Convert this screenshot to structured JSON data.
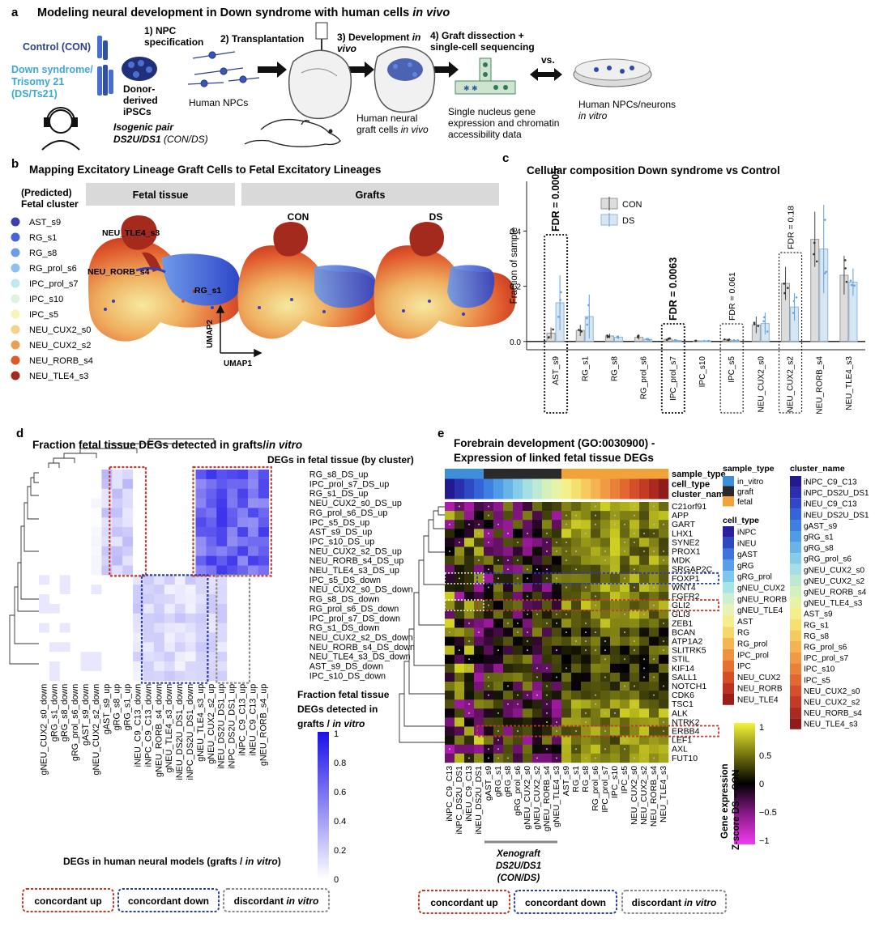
{
  "panel_a": {
    "letter": "a",
    "title_plain": "Modeling neural development in Down syndrome with human cells ",
    "title_italic": "in vivo",
    "control_label": "Control (CON)",
    "ds_label_line1": "Down syndrome/",
    "ds_label_line2": "Trisomy 21",
    "ds_label_line3": "(DS/Ts21)",
    "step1_line1": "1) NPC",
    "step1_line2": "specification",
    "step2": "2) Transplantation",
    "step3_line1": "3) Development in",
    "step3_line2": "vivo",
    "step4_line1": "4) Graft dissection +",
    "step4_line2": "single-cell sequencing",
    "donor_line1": "Donor-",
    "donor_line2": "derived",
    "donor_line3": "iPSCs",
    "human_npcs": "Human NPCs",
    "isogenic_line1": "Isogenic pair",
    "isogenic_line2_bold": "DS2U/DS1",
    "isogenic_line2_rest": " (CON/DS)",
    "graft_line1": "Human neural",
    "graft_line2": "graft cells in vivo",
    "sn_line1": "Single nucleus gene",
    "sn_line2": "expression and chromatin",
    "sn_line3": "accessibility data",
    "vs": "vs.",
    "vitro_line1": "Human NPCs/neurons",
    "vitro_line2": "in vitro"
  },
  "panel_b": {
    "letter": "b",
    "title": "Mapping Excitatory Lineage Graft Cells to Fetal Excitatory Lineages",
    "legend_title_line1": "(Predicted)",
    "legend_title_line2": "Fetal cluster",
    "legend": [
      {
        "label": "AST_s9",
        "color": "#3b3fb0"
      },
      {
        "label": "RG_s1",
        "color": "#4a63d6"
      },
      {
        "label": "RG_s8",
        "color": "#6f9ae8"
      },
      {
        "label": "RG_prol_s6",
        "color": "#8fc0ef"
      },
      {
        "label": "IPC_prol_s7",
        "color": "#bfe8f2"
      },
      {
        "label": "IPC_s10",
        "color": "#dcf4dc"
      },
      {
        "label": "IPC_s5",
        "color": "#f8f4b8"
      },
      {
        "label": "NEU_CUX2_s0",
        "color": "#f4d28a"
      },
      {
        "label": "NEU_CUX2_s2",
        "color": "#ec9e55"
      },
      {
        "label": "NEU_RORB_s4",
        "color": "#dc5a2c"
      },
      {
        "label": "NEU_TLE4_s3",
        "color": "#a52a1e"
      }
    ],
    "header_fetal": "Fetal tissue",
    "header_grafts": "Grafts",
    "sub_con": "CON",
    "sub_ds": "DS",
    "label_tle4": "NEU_TLE4_s3",
    "label_rorb": "NEU_RORB_s4",
    "label_rg": "RG_s1",
    "axis_umap2": "UMAP2",
    "axis_umap1": "UMAP1"
  },
  "panel_c": {
    "letter": "c",
    "chart_data": {
      "type": "bar",
      "title": "Cellular composition Down syndrome vs Control",
      "ylabel": "Fraction of sample",
      "xlabel": "",
      "ylim": [
        -0.03,
        0.58
      ],
      "yticks": [
        "0.0",
        "0.2",
        "0.4"
      ],
      "categories": [
        "AST_s9",
        "RG_s1",
        "RG_s8",
        "RG_prol_s6",
        "IPC_prol_s7",
        "IPC_s10",
        "IPC_s5",
        "NEU_CUX2_s0",
        "NEU_CUX2_s2",
        "NEU_RORB_s4",
        "NEU_TLE4_s3"
      ],
      "series": [
        {
          "name": "CON",
          "color": "#9a9a9a",
          "values": [
            0.03,
            0.04,
            0.02,
            0.015,
            0.008,
            0.002,
            0.006,
            0.06,
            0.21,
            0.37,
            0.24
          ],
          "errors": [
            0.02,
            0.02,
            0.008,
            0.008,
            0.004,
            0.001,
            0.004,
            0.03,
            0.06,
            0.1,
            0.07
          ]
        },
        {
          "name": "DS",
          "color": "#8db8de",
          "values": [
            0.14,
            0.09,
            0.015,
            0.008,
            0.004,
            0.002,
            0.003,
            0.065,
            0.125,
            0.335,
            0.215
          ],
          "errors": [
            0.1,
            0.08,
            0.006,
            0.005,
            0.002,
            0.001,
            0.002,
            0.04,
            0.05,
            0.16,
            0.05
          ]
        }
      ],
      "legend": [
        "CON",
        "DS"
      ],
      "annotations": [
        {
          "category": "AST_s9",
          "text": "FDR = 0.0005",
          "bold": true
        },
        {
          "category": "IPC_prol_s7",
          "text": "FDR = 0.0063",
          "bold": true
        },
        {
          "category": "IPC_s5",
          "text": "FDR = 0.061",
          "bold": false
        },
        {
          "category": "NEU_CUX2_s2",
          "text": "FDR = 0.18",
          "bold": false
        }
      ]
    }
  },
  "panel_d": {
    "letter": "d",
    "title_plain": "Fraction fetal tissue DEGs detected in grafts/",
    "title_italic": "in vitro",
    "row_header": "DEGs in fetal tissue (by cluster)",
    "rows": [
      "RG_s8_DS_up",
      "IPC_prol_s7_DS_up",
      "RG_s1_DS_up",
      "NEU_CUX2_s0_DS_up",
      "RG_prol_s6_DS_up",
      "IPC_s5_DS_up",
      "AST_s9_DS_up",
      "IPC_s10_DS_up",
      "NEU_CUX2_s2_DS_up",
      "NEU_RORB_s4_DS_up",
      "NEU_TLE4_s3_DS_up",
      "IPC_s5_DS_down",
      "NEU_CUX2_s0_DS_down",
      "RG_s8_DS_down",
      "RG_prol_s6_DS_down",
      "IPC_prol_s7_DS_down",
      "RG_s1_DS_down",
      "NEU_CUX2_s2_DS_down",
      "NEU_RORB_s4_DS_down",
      "NEU_TLE4_s3_DS_down",
      "AST_s9_DS_down",
      "IPC_s10_DS_down"
    ],
    "cols": [
      "gNEU_CUX2_s0_down",
      "gRG_s1_down",
      "gRG_s8_down",
      "gRG_prol_s6_down",
      "gAST_s9_down",
      "gNEU_CUX2_s2_down",
      "gAST_s9_up",
      "gRG_s8_up",
      "gRG_s1_up",
      "iNEU_C9_C13_down",
      "iNPC_C9_C13_down",
      "gNEU_RORB_s4_down",
      "gNEU_TLE4_s3_down",
      "iNEU_DS2U_DS1_down",
      "iNPC_DS2U_DS1_down",
      "gNEU_TLE4_s3_up",
      "gNEU_CUX2_s2_up",
      "iNEU_DS2U_DS1_up",
      "iNPC_DS2U_DS1_up",
      "iNPC_C9_C13_up",
      "iNEU_C9_C13_up",
      "gNEU_RORB_s4_up"
    ],
    "colorbar_title_line1": "Fraction fetal tissue",
    "colorbar_title_line2": "DEGs detected in",
    "colorbar_title_line3": "grafts / in vitro",
    "colorbar_ticks": [
      "1",
      "0.8",
      "0.6",
      "0.4",
      "0.2",
      "0"
    ],
    "bottom_label_plain": "DEGs in human neural models (grafts / ",
    "bottom_label_italic": "in vitro",
    "bottom_label_end": ")",
    "key_up": "concordant up",
    "key_down": "concordant down",
    "key_disc_plain": "discordant ",
    "key_disc_italic": "in vitro"
  },
  "panel_e": {
    "letter": "e",
    "title_line1": "Forebrain development (GO:0030900) -",
    "title_line2": "Expression of linked fetal tissue DEGs",
    "track_labels": [
      "sample_type",
      "cell_type",
      "cluster_name"
    ],
    "genes": [
      "C21orf91",
      "APP",
      "GART",
      "LHX1",
      "SYNE2",
      "PROX1",
      "MDK",
      "SRGAP2C",
      "FOXP1",
      "WNT4",
      "FGFR2",
      "GLI2",
      "GLI3",
      "ZEB1",
      "BCAN",
      "ATP1A2",
      "SLITRK5",
      "STIL",
      "KIF14",
      "SALL1",
      "NOTCH1",
      "CDK6",
      "TSC1",
      "ALK",
      "NTRK2",
      "ERBB4",
      "LEF1",
      "AXL",
      "FUT10"
    ],
    "cols": [
      "iNPC_C9_C13",
      "iNPC_DS2U_DS1",
      "iNEU_C9_C13",
      "iNEU_DS2U_DS1",
      "gAST_s9",
      "gRG_s1",
      "gRG_s8",
      "gRG_prol_s6",
      "gNEU_CUX2_s0",
      "gNEU_CUX2_s2",
      "gNEU_RORB_s4",
      "gNEU_TLE4_s3",
      "AST_s9",
      "RG_s1",
      "RG_s8",
      "RG_prol_s6",
      "IPC_prol_s7",
      "IPC_s10",
      "IPC_s5",
      "NEU_CUX2_s0",
      "NEU_CUX2_s2",
      "NEU_RORB_s4",
      "NEU_TLE4_s3"
    ],
    "xeno_line1": "Xenograft",
    "xeno_line2": "DS2U/DS1",
    "xeno_line3": "(CON/DS)",
    "sample_type_title": "sample_type",
    "sample_type_items": [
      {
        "label": "in_vitro",
        "color": "#3f8fd8"
      },
      {
        "label": "graft",
        "color": "#2a2a2a"
      },
      {
        "label": "fetal",
        "color": "#f2a23a"
      }
    ],
    "cell_type_title": "cell_type",
    "cell_type_items": [
      {
        "label": "iNPC",
        "color": "#2a1f9e"
      },
      {
        "label": "iNEU",
        "color": "#2c49c4"
      },
      {
        "label": "gAST",
        "color": "#3f73dd"
      },
      {
        "label": "gRG",
        "color": "#579fe6"
      },
      {
        "label": "gRG_prol",
        "color": "#7ec7ec"
      },
      {
        "label": "gNEU_CUX2",
        "color": "#a8e3e6"
      },
      {
        "label": "gNEU_RORB",
        "color": "#cdeed1"
      },
      {
        "label": "gNEU_TLE4",
        "color": "#e6f2b6"
      },
      {
        "label": "AST",
        "color": "#f5ee8e"
      },
      {
        "label": "RG",
        "color": "#f6d86a"
      },
      {
        "label": "RG_prol",
        "color": "#f3b650"
      },
      {
        "label": "IPC_prol",
        "color": "#ee9340"
      },
      {
        "label": "IPC",
        "color": "#e5702f"
      },
      {
        "label": "NEU_CUX2",
        "color": "#d54f25"
      },
      {
        "label": "NEU_RORB",
        "color": "#bb3320"
      },
      {
        "label": "NEU_TLE4",
        "color": "#9a1d1a"
      }
    ],
    "cluster_title": "cluster_name",
    "cluster_items": [
      {
        "label": "iNPC_C9_C13",
        "color": "#241a8f"
      },
      {
        "label": "iNPC_DS2U_DS1",
        "color": "#2a2fae"
      },
      {
        "label": "iNEU_C9_C13",
        "color": "#2f49c6"
      },
      {
        "label": "iNEU_DS2U_DS1",
        "color": "#3564d8"
      },
      {
        "label": "gAST_s9",
        "color": "#3e80e2"
      },
      {
        "label": "gRG_s1",
        "color": "#4e9be6"
      },
      {
        "label": "gRG_s8",
        "color": "#68b4e9"
      },
      {
        "label": "gRG_prol_s6",
        "color": "#85cbea"
      },
      {
        "label": "gNEU_CUX2_s0",
        "color": "#a3dfe4"
      },
      {
        "label": "gNEU_CUX2_s2",
        "color": "#bde9d4"
      },
      {
        "label": "gNEU_RORB_s4",
        "color": "#d4f0bd"
      },
      {
        "label": "gNEU_TLE4_s3",
        "color": "#e7f2a4"
      },
      {
        "label": "AST_s9",
        "color": "#f3ef8a"
      },
      {
        "label": "RG_s1",
        "color": "#f6e070"
      },
      {
        "label": "RG_s8",
        "color": "#f6cb5e"
      },
      {
        "label": "RG_prol_s6",
        "color": "#f4b350"
      },
      {
        "label": "IPC_prol_s7",
        "color": "#f09a45"
      },
      {
        "label": "IPC_s10",
        "color": "#ea803a"
      },
      {
        "label": "IPC_s5",
        "color": "#e26731"
      },
      {
        "label": "NEU_CUX2_s0",
        "color": "#d5502a"
      },
      {
        "label": "NEU_CUX2_s2",
        "color": "#c33b24"
      },
      {
        "label": "NEU_RORB_s4",
        "color": "#ab2a1f"
      },
      {
        "label": "NEU_TLE4_s3",
        "color": "#8f1c1a"
      }
    ],
    "zscore_title_line1": "Gene expression",
    "zscore_title_line2": "Z-score DS − CON",
    "zscore_ticks": [
      "1",
      "0.5",
      "0",
      "−0.5",
      "−1"
    ],
    "key_up": "concordant up",
    "key_down": "concordant down",
    "key_disc_plain": "discordant ",
    "key_disc_italic": "in vitro"
  }
}
